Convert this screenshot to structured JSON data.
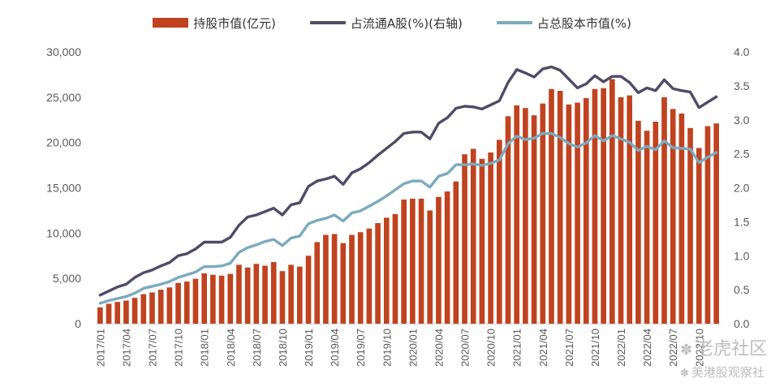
{
  "legend": {
    "bar_label": "持股市值(亿元)",
    "line1_label": "占流通A股(%)(右轴)",
    "line2_label": "占总股本市值(%)"
  },
  "colors": {
    "bar": "#c0421f",
    "line1": "#514a68",
    "line2": "#7baabf",
    "axis_text": "#595959"
  },
  "watermark": {
    "line1": "老虎社区",
    "line2": "美港股观察社",
    "icon": "paw-icon"
  },
  "chart_data": {
    "type": "bar",
    "x": [
      "2017/01",
      "2017/02",
      "2017/03",
      "2017/04",
      "2017/05",
      "2017/06",
      "2017/07",
      "2017/08",
      "2017/09",
      "2017/10",
      "2017/11",
      "2017/12",
      "2018/01",
      "2018/02",
      "2018/03",
      "2018/04",
      "2018/05",
      "2018/06",
      "2018/07",
      "2018/08",
      "2018/09",
      "2018/10",
      "2018/11",
      "2018/12",
      "2019/01",
      "2019/02",
      "2019/03",
      "2019/04",
      "2019/05",
      "2019/06",
      "2019/07",
      "2019/08",
      "2019/09",
      "2019/10",
      "2019/11",
      "2019/12",
      "2020/01",
      "2020/02",
      "2020/03",
      "2020/04",
      "2020/05",
      "2020/06",
      "2020/07",
      "2020/08",
      "2020/09",
      "2020/10",
      "2020/11",
      "2020/12",
      "2021/01",
      "2021/02",
      "2021/03",
      "2021/04",
      "2021/05",
      "2021/06",
      "2021/07",
      "2021/08",
      "2021/09",
      "2021/10",
      "2021/11",
      "2021/12",
      "2022/01",
      "2022/02",
      "2022/03",
      "2022/04",
      "2022/05",
      "2022/06",
      "2022/07",
      "2022/08",
      "2022/09",
      "2022/10",
      "2022/11",
      "2022/12"
    ],
    "x_tick_labels": [
      "2017/01",
      "2017/04",
      "2017/07",
      "2017/10",
      "2018/01",
      "2018/04",
      "2018/07",
      "2018/10",
      "2019/01",
      "2019/04",
      "2019/07",
      "2019/10",
      "2020/01",
      "2020/04",
      "2020/07",
      "2020/10",
      "2021/01",
      "2021/04",
      "2021/07",
      "2021/10",
      "2022/01",
      "2022/04",
      "2022/07",
      "2022/10"
    ],
    "series": [
      {
        "name": "持股市值(亿元)",
        "type": "bar",
        "axis": "left",
        "values": [
          1800,
          2200,
          2400,
          2550,
          2850,
          3250,
          3450,
          3750,
          4000,
          4500,
          4650,
          4950,
          5550,
          5400,
          5300,
          5500,
          6500,
          6200,
          6600,
          6400,
          6800,
          5800,
          6500,
          6300,
          7500,
          9000,
          9800,
          9900,
          8900,
          9800,
          10100,
          10500,
          11100,
          11700,
          12100,
          13700,
          13800,
          13800,
          12500,
          14000,
          14600,
          15700,
          18700,
          19300,
          18200,
          18900,
          20300,
          22900,
          24100,
          23800,
          23000,
          24300,
          25900,
          25700,
          24200,
          24400,
          24900,
          25900,
          26000,
          27000,
          25000,
          25200,
          22400,
          21300,
          22300,
          25000,
          23700,
          23200,
          21600,
          19400,
          21800,
          22100
        ]
      },
      {
        "name": "占流通A股(%)(右轴)",
        "type": "line",
        "axis": "right",
        "values": [
          0.42,
          0.48,
          0.54,
          0.58,
          0.68,
          0.75,
          0.79,
          0.85,
          0.9,
          1.0,
          1.03,
          1.1,
          1.2,
          1.2,
          1.2,
          1.27,
          1.45,
          1.57,
          1.6,
          1.65,
          1.7,
          1.6,
          1.75,
          1.78,
          2.02,
          2.1,
          2.13,
          2.17,
          2.05,
          2.22,
          2.28,
          2.37,
          2.48,
          2.58,
          2.68,
          2.8,
          2.82,
          2.82,
          2.72,
          2.95,
          3.03,
          3.17,
          3.2,
          3.19,
          3.16,
          3.22,
          3.28,
          3.55,
          3.74,
          3.69,
          3.63,
          3.75,
          3.78,
          3.73,
          3.6,
          3.47,
          3.53,
          3.65,
          3.56,
          3.64,
          3.64,
          3.55,
          3.4,
          3.47,
          3.43,
          3.59,
          3.46,
          3.43,
          3.41,
          3.18,
          3.26,
          3.34
        ]
      },
      {
        "name": "占总股本市值(%)",
        "type": "line",
        "axis": "right",
        "values": [
          0.3,
          0.34,
          0.37,
          0.4,
          0.45,
          0.52,
          0.55,
          0.58,
          0.62,
          0.68,
          0.72,
          0.76,
          0.84,
          0.84,
          0.85,
          0.89,
          1.05,
          1.12,
          1.16,
          1.21,
          1.24,
          1.15,
          1.26,
          1.29,
          1.47,
          1.52,
          1.55,
          1.6,
          1.51,
          1.63,
          1.66,
          1.73,
          1.8,
          1.88,
          1.97,
          2.06,
          2.1,
          2.1,
          2.01,
          2.17,
          2.21,
          2.34,
          2.34,
          2.35,
          2.33,
          2.36,
          2.41,
          2.65,
          2.76,
          2.71,
          2.73,
          2.8,
          2.8,
          2.74,
          2.65,
          2.6,
          2.66,
          2.77,
          2.69,
          2.77,
          2.72,
          2.67,
          2.55,
          2.61,
          2.56,
          2.69,
          2.59,
          2.58,
          2.57,
          2.37,
          2.45,
          2.52
        ]
      }
    ],
    "y_left": {
      "min": 0,
      "max": 30000,
      "ticks": [
        0,
        5000,
        10000,
        15000,
        20000,
        25000,
        30000
      ],
      "tick_labels": [
        "0",
        "5,000",
        "10,000",
        "15,000",
        "20,000",
        "25,000",
        "30,000"
      ]
    },
    "y_right": {
      "min": 0,
      "max": 4.0,
      "ticks": [
        0,
        0.5,
        1.0,
        1.5,
        2.0,
        2.5,
        3.0,
        3.5,
        4.0
      ],
      "tick_labels": [
        "0.0",
        "0.5",
        "1.0",
        "1.5",
        "2.0",
        "2.5",
        "3.0",
        "3.5",
        "4.0"
      ]
    },
    "grid": false,
    "legend_position": "top-center"
  }
}
